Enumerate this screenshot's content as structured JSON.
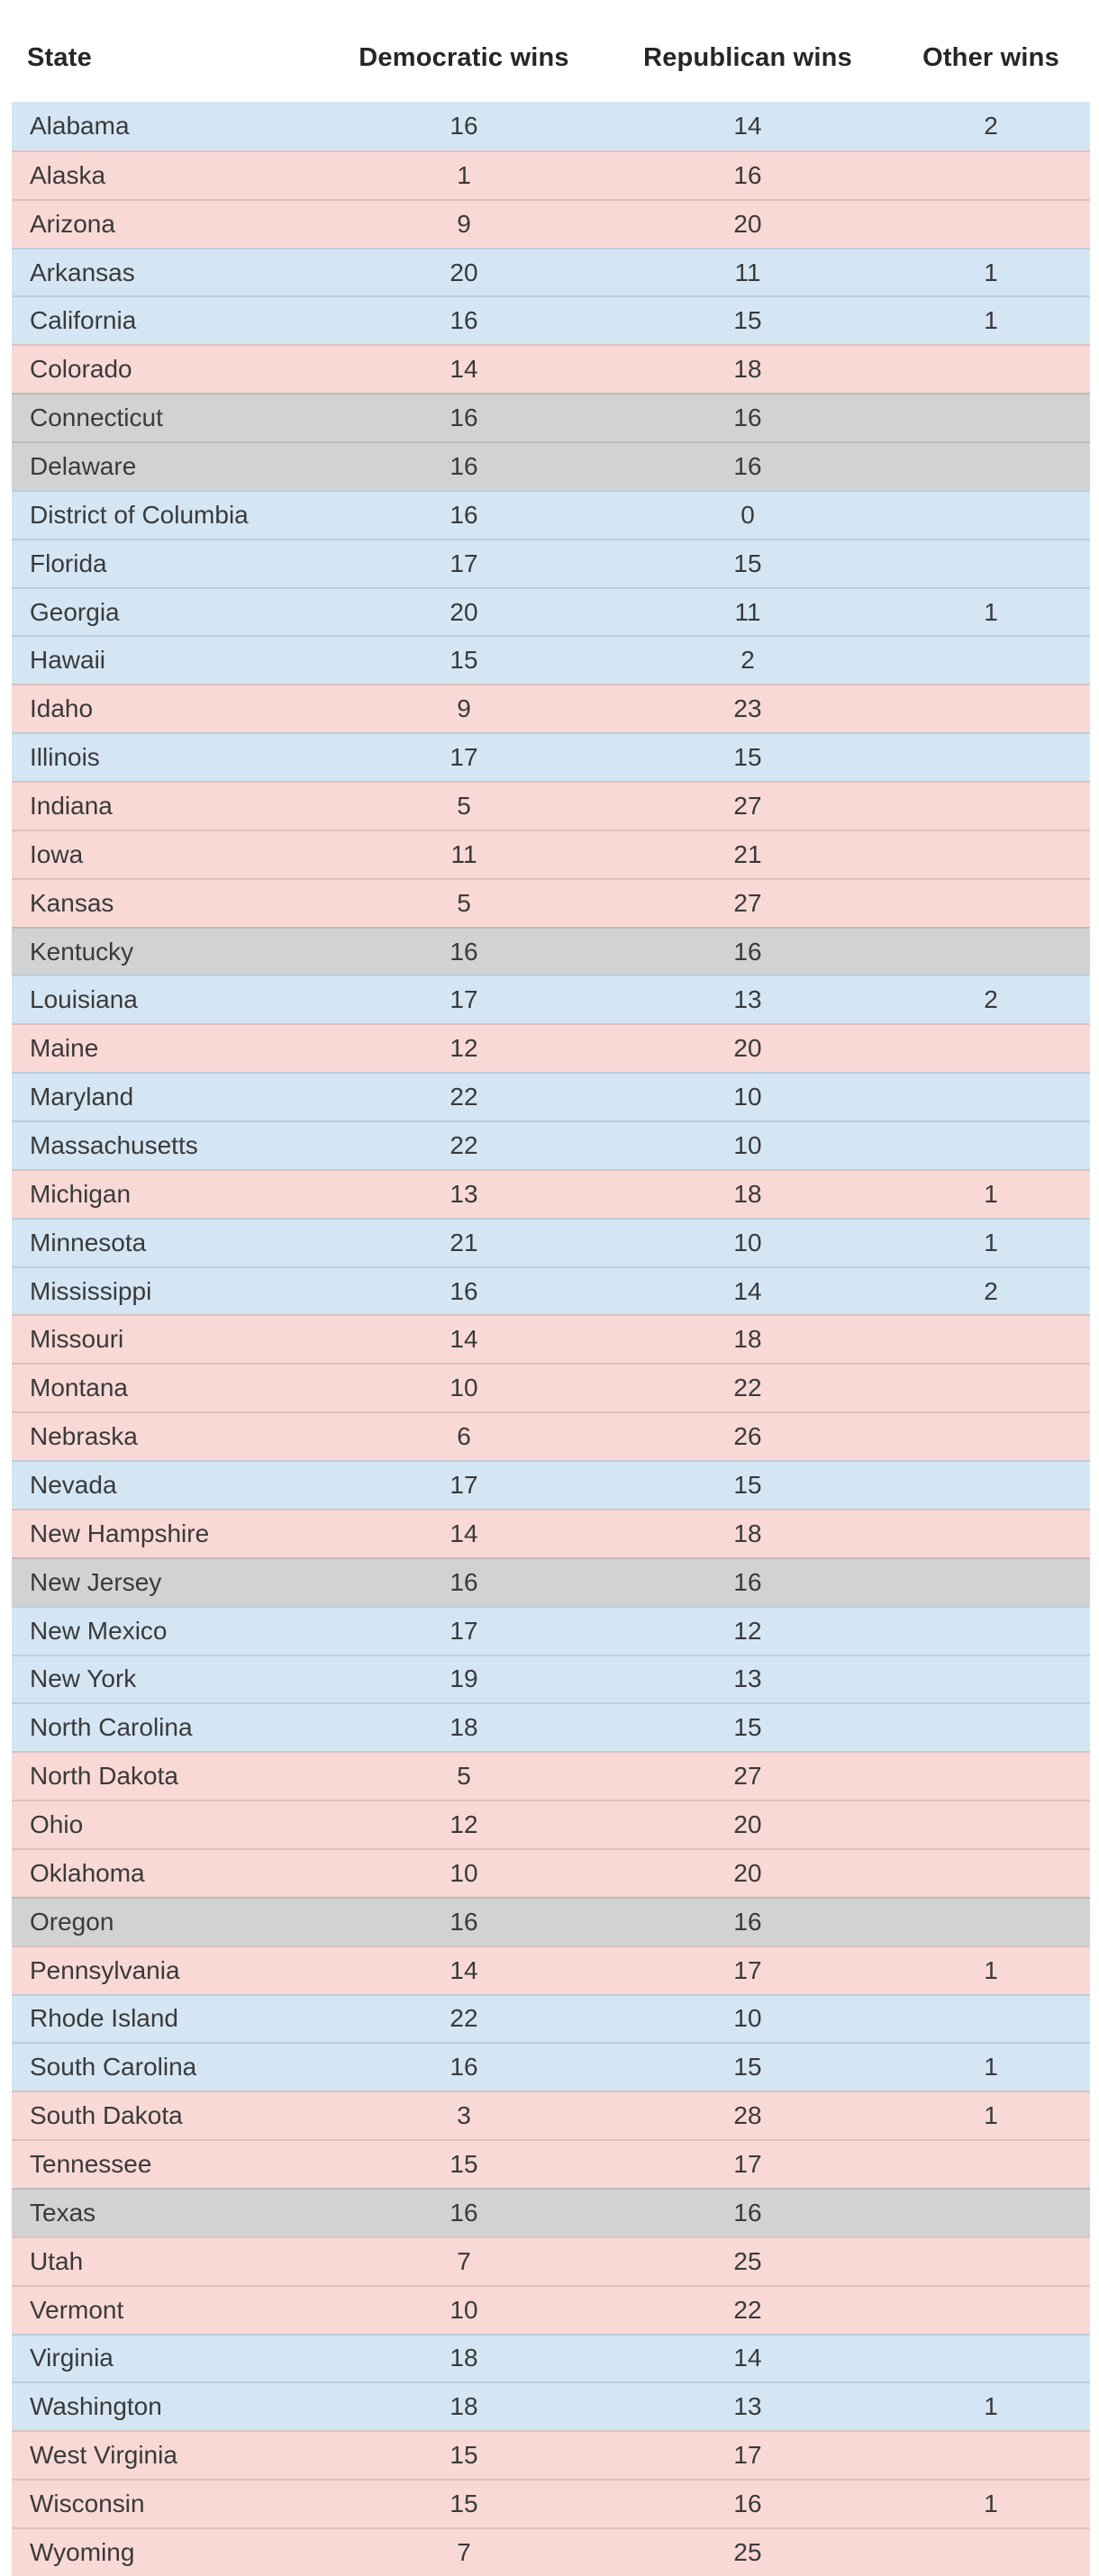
{
  "chart_data": {
    "type": "table",
    "title": "",
    "columns": [
      "State",
      "Democratic wins",
      "Republican wins",
      "Other wins"
    ],
    "row_color_rule": "blue = more Democratic wins, red = more Republican wins, gray = tie",
    "rows": [
      {
        "state": "Alabama",
        "dem": 16,
        "rep": 14,
        "other": 2
      },
      {
        "state": "Alaska",
        "dem": 1,
        "rep": 16,
        "other": ""
      },
      {
        "state": "Arizona",
        "dem": 9,
        "rep": 20,
        "other": ""
      },
      {
        "state": "Arkansas",
        "dem": 20,
        "rep": 11,
        "other": 1
      },
      {
        "state": "California",
        "dem": 16,
        "rep": 15,
        "other": 1
      },
      {
        "state": "Colorado",
        "dem": 14,
        "rep": 18,
        "other": ""
      },
      {
        "state": "Connecticut",
        "dem": 16,
        "rep": 16,
        "other": ""
      },
      {
        "state": "Delaware",
        "dem": 16,
        "rep": 16,
        "other": ""
      },
      {
        "state": "District of Columbia",
        "dem": 16,
        "rep": 0,
        "other": ""
      },
      {
        "state": "Florida",
        "dem": 17,
        "rep": 15,
        "other": ""
      },
      {
        "state": "Georgia",
        "dem": 20,
        "rep": 11,
        "other": 1
      },
      {
        "state": "Hawaii",
        "dem": 15,
        "rep": 2,
        "other": ""
      },
      {
        "state": "Idaho",
        "dem": 9,
        "rep": 23,
        "other": ""
      },
      {
        "state": "Illinois",
        "dem": 17,
        "rep": 15,
        "other": ""
      },
      {
        "state": "Indiana",
        "dem": 5,
        "rep": 27,
        "other": ""
      },
      {
        "state": "Iowa",
        "dem": 11,
        "rep": 21,
        "other": ""
      },
      {
        "state": "Kansas",
        "dem": 5,
        "rep": 27,
        "other": ""
      },
      {
        "state": "Kentucky",
        "dem": 16,
        "rep": 16,
        "other": ""
      },
      {
        "state": "Louisiana",
        "dem": 17,
        "rep": 13,
        "other": 2
      },
      {
        "state": "Maine",
        "dem": 12,
        "rep": 20,
        "other": ""
      },
      {
        "state": "Maryland",
        "dem": 22,
        "rep": 10,
        "other": ""
      },
      {
        "state": "Massachusetts",
        "dem": 22,
        "rep": 10,
        "other": ""
      },
      {
        "state": "Michigan",
        "dem": 13,
        "rep": 18,
        "other": 1
      },
      {
        "state": "Minnesota",
        "dem": 21,
        "rep": 10,
        "other": 1
      },
      {
        "state": "Mississippi",
        "dem": 16,
        "rep": 14,
        "other": 2
      },
      {
        "state": "Missouri",
        "dem": 14,
        "rep": 18,
        "other": ""
      },
      {
        "state": "Montana",
        "dem": 10,
        "rep": 22,
        "other": ""
      },
      {
        "state": "Nebraska",
        "dem": 6,
        "rep": 26,
        "other": ""
      },
      {
        "state": "Nevada",
        "dem": 17,
        "rep": 15,
        "other": ""
      },
      {
        "state": "New Hampshire",
        "dem": 14,
        "rep": 18,
        "other": ""
      },
      {
        "state": "New Jersey",
        "dem": 16,
        "rep": 16,
        "other": ""
      },
      {
        "state": "New Mexico",
        "dem": 17,
        "rep": 12,
        "other": ""
      },
      {
        "state": "New York",
        "dem": 19,
        "rep": 13,
        "other": ""
      },
      {
        "state": "North Carolina",
        "dem": 18,
        "rep": 15,
        "other": ""
      },
      {
        "state": "North Dakota",
        "dem": 5,
        "rep": 27,
        "other": ""
      },
      {
        "state": "Ohio",
        "dem": 12,
        "rep": 20,
        "other": ""
      },
      {
        "state": "Oklahoma",
        "dem": 10,
        "rep": 20,
        "other": ""
      },
      {
        "state": "Oregon",
        "dem": 16,
        "rep": 16,
        "other": ""
      },
      {
        "state": "Pennsylvania",
        "dem": 14,
        "rep": 17,
        "other": 1
      },
      {
        "state": "Rhode Island",
        "dem": 22,
        "rep": 10,
        "other": ""
      },
      {
        "state": "South Carolina",
        "dem": 16,
        "rep": 15,
        "other": 1
      },
      {
        "state": "South Dakota",
        "dem": 3,
        "rep": 28,
        "other": 1
      },
      {
        "state": "Tennessee",
        "dem": 15,
        "rep": 17,
        "other": ""
      },
      {
        "state": "Texas",
        "dem": 16,
        "rep": 16,
        "other": ""
      },
      {
        "state": "Utah",
        "dem": 7,
        "rep": 25,
        "other": ""
      },
      {
        "state": "Vermont",
        "dem": 10,
        "rep": 22,
        "other": ""
      },
      {
        "state": "Virginia",
        "dem": 18,
        "rep": 14,
        "other": ""
      },
      {
        "state": "Washington",
        "dem": 18,
        "rep": 13,
        "other": 1
      },
      {
        "state": "West Virginia",
        "dem": 15,
        "rep": 17,
        "other": ""
      },
      {
        "state": "Wisconsin",
        "dem": 15,
        "rep": 16,
        "other": 1
      },
      {
        "state": "Wyoming",
        "dem": 7,
        "rep": 25,
        "other": ""
      }
    ]
  },
  "colors": {
    "democratic_row": "#d4e6f4",
    "republican_row": "#f8d9d6",
    "tie_row": "#d2d2d2",
    "row_text": "#3a3a3a",
    "header_text": "#262626"
  }
}
